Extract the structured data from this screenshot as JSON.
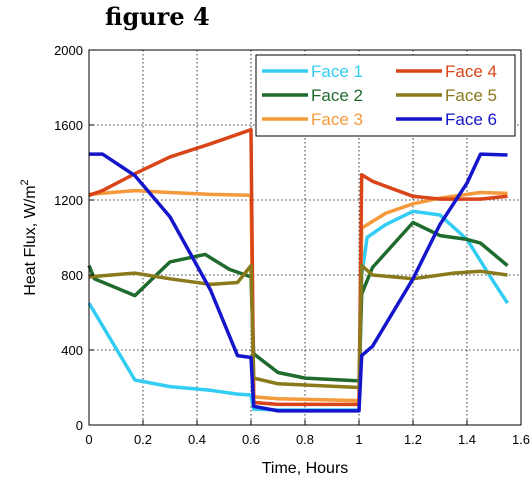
{
  "figure_title": "figure 4",
  "colors": {
    "face1": "#33ccf2",
    "face2": "#1f6b2e",
    "face3": "#f59a3a",
    "face4": "#d94418",
    "face5": "#8a7a1c",
    "face6": "#1515cc"
  },
  "chart_data": {
    "type": "line",
    "xlabel": "Time, Hours",
    "ylabel": "Heat Flux, W/m",
    "ylabel_sup": "2",
    "xlim": [
      0,
      1.6
    ],
    "ylim": [
      0,
      2000
    ],
    "xticks": [
      0,
      0.2,
      0.4,
      0.6,
      0.8,
      1,
      1.2,
      1.4,
      1.6
    ],
    "yticks": [
      0,
      400,
      800,
      1200,
      1600,
      2000
    ],
    "grid": true,
    "legend_position": "top-right",
    "series": [
      {
        "name": "Face 1",
        "color": "#33ccf2",
        "points": [
          [
            0,
            650
          ],
          [
            0.17,
            240
          ],
          [
            0.3,
            205
          ],
          [
            0.45,
            185
          ],
          [
            0.55,
            165
          ],
          [
            0.6,
            160
          ],
          [
            0.61,
            85
          ],
          [
            0.7,
            80
          ],
          [
            1.0,
            80
          ],
          [
            1.01,
            800
          ],
          [
            1.03,
            1000
          ],
          [
            1.1,
            1070
          ],
          [
            1.2,
            1140
          ],
          [
            1.3,
            1120
          ],
          [
            1.4,
            990
          ],
          [
            1.5,
            760
          ],
          [
            1.55,
            650
          ]
        ]
      },
      {
        "name": "Face 2",
        "color": "#1f6b2e",
        "points": [
          [
            0,
            850
          ],
          [
            0.02,
            780
          ],
          [
            0.17,
            690
          ],
          [
            0.3,
            870
          ],
          [
            0.43,
            910
          ],
          [
            0.52,
            830
          ],
          [
            0.6,
            790
          ],
          [
            0.61,
            380
          ],
          [
            0.7,
            280
          ],
          [
            0.8,
            250
          ],
          [
            1.0,
            235
          ],
          [
            1.01,
            700
          ],
          [
            1.05,
            840
          ],
          [
            1.2,
            1080
          ],
          [
            1.3,
            1010
          ],
          [
            1.4,
            990
          ],
          [
            1.45,
            970
          ],
          [
            1.55,
            850
          ]
        ]
      },
      {
        "name": "Face 3",
        "color": "#f59a3a",
        "points": [
          [
            0,
            1230
          ],
          [
            0.17,
            1250
          ],
          [
            0.3,
            1240
          ],
          [
            0.45,
            1230
          ],
          [
            0.6,
            1225
          ],
          [
            0.61,
            150
          ],
          [
            0.7,
            140
          ],
          [
            1.0,
            130
          ],
          [
            1.01,
            1050
          ],
          [
            1.1,
            1130
          ],
          [
            1.2,
            1180
          ],
          [
            1.3,
            1210
          ],
          [
            1.45,
            1240
          ],
          [
            1.55,
            1235
          ]
        ]
      },
      {
        "name": "Face 4",
        "color": "#d94418",
        "points": [
          [
            0,
            1225
          ],
          [
            0.05,
            1250
          ],
          [
            0.17,
            1340
          ],
          [
            0.3,
            1430
          ],
          [
            0.45,
            1500
          ],
          [
            0.6,
            1575
          ],
          [
            0.61,
            120
          ],
          [
            0.7,
            110
          ],
          [
            1.0,
            110
          ],
          [
            1.01,
            1335
          ],
          [
            1.05,
            1300
          ],
          [
            1.2,
            1220
          ],
          [
            1.3,
            1205
          ],
          [
            1.45,
            1205
          ],
          [
            1.55,
            1220
          ]
        ]
      },
      {
        "name": "Face 5",
        "color": "#8a7a1c",
        "points": [
          [
            0,
            790
          ],
          [
            0.17,
            810
          ],
          [
            0.3,
            780
          ],
          [
            0.45,
            750
          ],
          [
            0.55,
            760
          ],
          [
            0.6,
            850
          ],
          [
            0.61,
            250
          ],
          [
            0.7,
            220
          ],
          [
            1.0,
            200
          ],
          [
            1.01,
            850
          ],
          [
            1.05,
            800
          ],
          [
            1.2,
            780
          ],
          [
            1.35,
            810
          ],
          [
            1.45,
            820
          ],
          [
            1.55,
            800
          ]
        ]
      },
      {
        "name": "Face 6",
        "color": "#1515cc",
        "points": [
          [
            0,
            1445
          ],
          [
            0.05,
            1445
          ],
          [
            0.17,
            1330
          ],
          [
            0.3,
            1110
          ],
          [
            0.45,
            720
          ],
          [
            0.55,
            370
          ],
          [
            0.6,
            360
          ],
          [
            0.61,
            100
          ],
          [
            0.7,
            75
          ],
          [
            1.0,
            75
          ],
          [
            1.01,
            370
          ],
          [
            1.05,
            420
          ],
          [
            1.2,
            780
          ],
          [
            1.3,
            1070
          ],
          [
            1.4,
            1290
          ],
          [
            1.45,
            1445
          ],
          [
            1.55,
            1440
          ]
        ]
      }
    ]
  }
}
